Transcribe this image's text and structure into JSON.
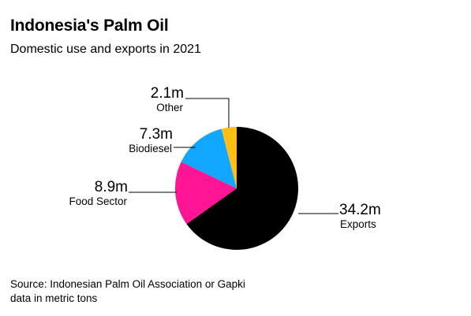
{
  "header": {
    "title": "Indonesia's Palm Oil",
    "subtitle": "Domestic use and exports in 2021"
  },
  "chart_data": {
    "type": "pie",
    "title": "Indonesia's Palm Oil",
    "subtitle": "Domestic use and exports in 2021",
    "unit": "metric tons",
    "start": "top, clockwise",
    "slices": [
      {
        "name": "Exports",
        "value": 34.2,
        "label": "34.2m",
        "color": "#000000"
      },
      {
        "name": "Food Sector",
        "value": 8.9,
        "label": "8.9m",
        "color": "#ff1493"
      },
      {
        "name": "Biodiesel",
        "value": 7.3,
        "label": "7.3m",
        "color": "#12a7ff"
      },
      {
        "name": "Other",
        "value": 2.1,
        "label": "2.1m",
        "color": "#ffbe16"
      }
    ]
  },
  "footer": {
    "source_line1": "Source: Indonesian Palm Oil Association or Gapki",
    "source_line2": "data in metric tons"
  }
}
